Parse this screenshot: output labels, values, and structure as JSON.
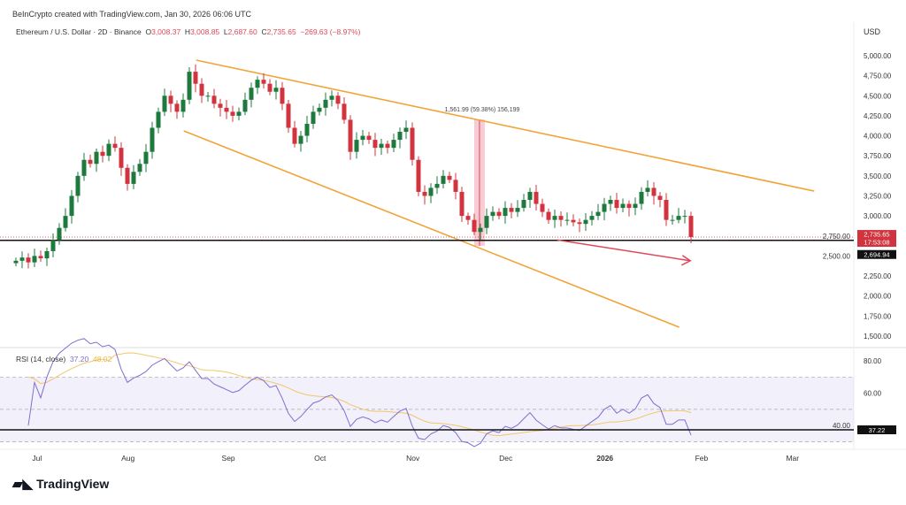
{
  "credit": "BeInCrypto created with TradingView.com, Jan 30, 2026 06:06 UTC",
  "legend": {
    "symbol": "Ethereum / U.S. Dollar · 2D · Binance",
    "o_label": "O",
    "o": "3,008.37",
    "h_label": "H",
    "h": "3,008.85",
    "l_label": "L",
    "l": "2,687.60",
    "c_label": "C",
    "c": "2,735.65",
    "change": "−269.63 (−8.97%)"
  },
  "currency": "USD",
  "rsi_legend": {
    "label": "RSI (14, close)",
    "rsi": "37.20",
    "ma": "48.02"
  },
  "price_tag": {
    "price": "2,735.65",
    "countdown": "17:53:08",
    "level": "2,694.94"
  },
  "rsi_tag": "37.22",
  "measure_label": "1,561.99 (59.38%) 156,199",
  "brand": "TradingView",
  "colors": {
    "up": "#1e7a3c",
    "down": "#d2343f",
    "channel": "#f2a43a",
    "rsi": "#7e6fd1",
    "rsi_ma": "#f2c66b",
    "measure": "#f4b6c2"
  },
  "chart_data": {
    "type": "candlestick",
    "title": "Ethereum / U.S. Dollar · 2D · Binance",
    "ylim": [
      1400,
      5150
    ],
    "yticks": [
      1500,
      1750,
      2000,
      2250,
      2500,
      2750,
      3000,
      3250,
      3500,
      3750,
      4000,
      4250,
      4500,
      4750,
      5000
    ],
    "ytick_labels": [
      "1,500.00",
      "1,750.00",
      "2,000.00",
      "2,250.00",
      "2,500.00",
      "2,750.00",
      "3,000.00",
      "3,250.00",
      "3,500.00",
      "3,750.00",
      "4,000.00",
      "4,250.00",
      "4,500.00",
      "4,750.00",
      "5,000.00"
    ],
    "xticks": [
      {
        "label": "Jul",
        "i": 3.4
      },
      {
        "label": "Aug",
        "i": 18.1
      },
      {
        "label": "Sep",
        "i": 34.3
      },
      {
        "label": "Oct",
        "i": 49.1
      },
      {
        "label": "Nov",
        "i": 64.1
      },
      {
        "label": "Dec",
        "i": 79.1
      },
      {
        "label": "2026",
        "i": 95.1
      },
      {
        "label": "Feb",
        "i": 110.7
      },
      {
        "label": "Mar",
        "i": 125.4
      }
    ],
    "closes": [
      2440,
      2480,
      2420,
      2500,
      2470,
      2560,
      2700,
      2850,
      3000,
      3250,
      3500,
      3700,
      3650,
      3800,
      3750,
      3900,
      3850,
      3600,
      3400,
      3550,
      3650,
      3800,
      4100,
      4300,
      4500,
      4400,
      4300,
      4450,
      4800,
      4650,
      4500,
      4500,
      4400,
      4350,
      4300,
      4250,
      4300,
      4450,
      4600,
      4700,
      4650,
      4550,
      4600,
      4400,
      4100,
      3900,
      4000,
      4150,
      4300,
      4350,
      4450,
      4500,
      4400,
      4200,
      3800,
      3950,
      4000,
      3950,
      3850,
      3900,
      3850,
      3950,
      4050,
      4100,
      3700,
      3300,
      3250,
      3350,
      3400,
      3500,
      3450,
      3300,
      3000,
      2950,
      2800,
      2850,
      3000,
      3050,
      3000,
      3100,
      3050,
      3100,
      3200,
      3300,
      3150,
      3050,
      2950,
      3000,
      2950,
      2950,
      2920,
      2900,
      2950,
      3000,
      3050,
      3150,
      3200,
      3100,
      3150,
      3100,
      3150,
      3300,
      3350,
      3250,
      3200,
      2950,
      2950,
      3000,
      3000,
      2735.65
    ],
    "support_level": 2694.94,
    "channel_upper": [
      [
        29.1,
        4945
      ],
      [
        128.9,
        3310
      ]
    ],
    "channel_lower": [
      [
        27.1,
        4061
      ],
      [
        107.1,
        1610
      ]
    ],
    "target_arrow": [
      [
        87.4,
        2700
      ],
      [
        108.9,
        2440
      ]
    ],
    "measure": {
      "i": [
        74,
        75.7
      ],
      "from": 2625,
      "to": 4205
    },
    "rsi": {
      "ylim": [
        15,
        85
      ],
      "yticks": [
        40,
        60,
        80
      ],
      "ytick_labels": [
        "40.00",
        "60.00",
        "80.00"
      ],
      "bands": [
        30,
        50,
        70
      ],
      "length": 14,
      "ma_length": 14
    }
  }
}
